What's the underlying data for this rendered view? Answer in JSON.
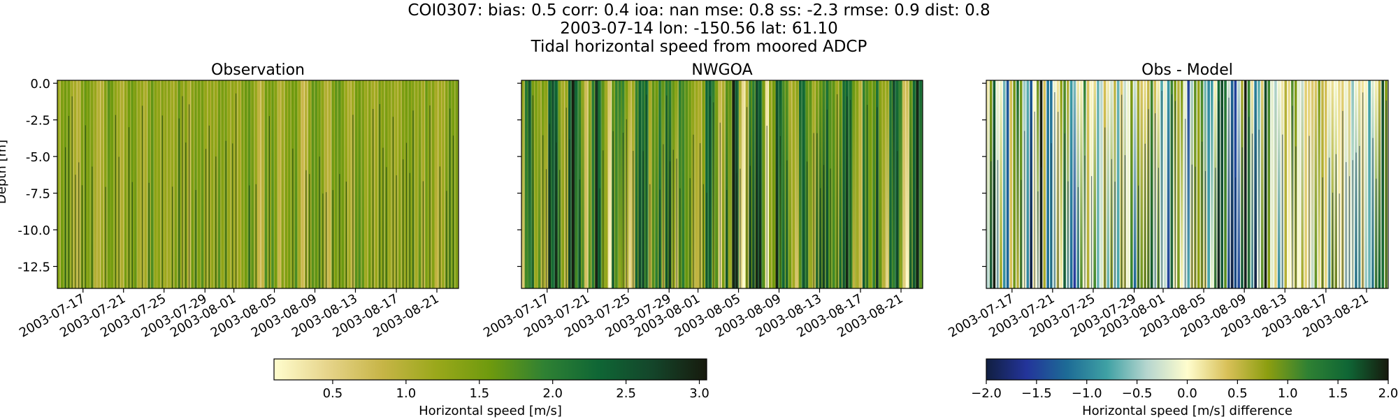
{
  "title": {
    "line1": "COI0307: bias: 0.5  corr: 0.4  ioa: nan  mse: 0.8  ss: -2.3  rmse: 0.9  dist: 0.8",
    "line2": "2003-07-14 lon: -150.56 lat: 61.10",
    "line3": "Tidal horizontal speed from moored ADCP"
  },
  "chart_data": [
    {
      "type": "heatmap",
      "title": "Observation",
      "xlabel": "",
      "ylabel": "Depth [m]",
      "x_tick_labels": [
        "2003-07-17",
        "2003-07-21",
        "2003-07-25",
        "2003-07-29",
        "2003-08-01",
        "2003-08-05",
        "2003-08-09",
        "2003-08-13",
        "2003-08-17",
        "2003-08-21"
      ],
      "y_tick_labels": [
        "0.0",
        "-2.5",
        "-5.0",
        "-7.5",
        "-10.0",
        "-12.5"
      ],
      "ylim": [
        -14.0,
        0.2
      ],
      "xlim": [
        "2003-07-14",
        "2003-08-24"
      ],
      "colormap": "speed",
      "colorbar": "horizontal speed",
      "approx_value_range": [
        0.8,
        1.8
      ]
    },
    {
      "type": "heatmap",
      "title": "NWGOA",
      "xlabel": "",
      "ylabel": "",
      "x_tick_labels": [
        "2003-07-17",
        "2003-07-21",
        "2003-07-25",
        "2003-07-29",
        "2003-08-01",
        "2003-08-05",
        "2003-08-09",
        "2003-08-13",
        "2003-08-17",
        "2003-08-21"
      ],
      "ylim": [
        -14.0,
        0.2
      ],
      "xlim": [
        "2003-07-14",
        "2003-08-24"
      ],
      "colormap": "speed",
      "colorbar": "horizontal speed",
      "approx_value_range": [
        0.1,
        3.0
      ]
    },
    {
      "type": "heatmap",
      "title": "Obs - Model",
      "xlabel": "",
      "ylabel": "",
      "x_tick_labels": [
        "2003-07-17",
        "2003-07-21",
        "2003-07-25",
        "2003-07-29",
        "2003-08-01",
        "2003-08-05",
        "2003-08-09",
        "2003-08-13",
        "2003-08-17",
        "2003-08-21"
      ],
      "ylim": [
        -14.0,
        0.2
      ],
      "xlim": [
        "2003-07-14",
        "2003-08-24"
      ],
      "colormap": "delta",
      "colorbar": "difference",
      "approx_value_range": [
        -2.0,
        2.0
      ]
    }
  ],
  "colorbars": {
    "speed": {
      "label": "Horizontal speed [m/s]",
      "vmin": 0.1,
      "vmax": 3.05,
      "ticks": [
        0.5,
        1.0,
        1.5,
        2.0,
        2.5,
        3.0
      ],
      "tick_labels": [
        "0.5",
        "1.0",
        "1.5",
        "2.0",
        "2.5",
        "3.0"
      ]
    },
    "difference": {
      "label": "Horizontal speed [m/s] difference",
      "vmin": -2.0,
      "vmax": 2.0,
      "ticks": [
        -2.0,
        -1.5,
        -1.0,
        -0.5,
        0.0,
        0.5,
        1.0,
        1.5,
        2.0
      ],
      "tick_labels": [
        "−2.0",
        "−1.5",
        "−1.0",
        "−0.5",
        "0.0",
        "0.5",
        "1.0",
        "1.5",
        "2.0"
      ]
    }
  },
  "colors": {
    "speed_stops": [
      "#fffdce",
      "#e6d48a",
      "#c7b547",
      "#9aa81b",
      "#6e9a0e",
      "#2f8133",
      "#0f6635",
      "#14452a",
      "#171a0d"
    ],
    "delta_stops": [
      "#111f41",
      "#23349a",
      "#1d6b96",
      "#3fa1a4",
      "#b6d6cf",
      "#fffdce",
      "#d8c058",
      "#8c9e10",
      "#2f8133",
      "#0f6635",
      "#171a0d"
    ]
  }
}
